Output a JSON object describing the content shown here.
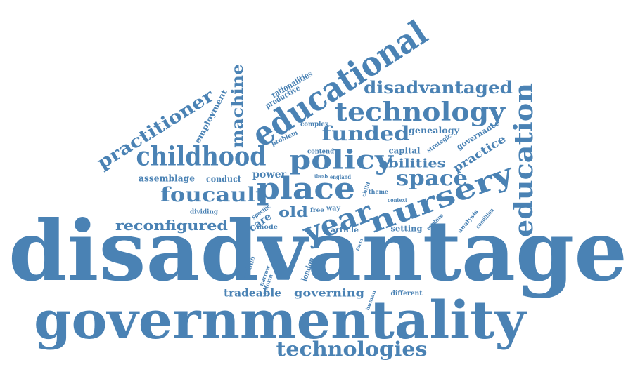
{
  "colors": {
    "word": "#4a82b4",
    "background": "#ffffff"
  },
  "words": [
    "disadvantage",
    "governmentality",
    "educational",
    "nursery",
    "place",
    "year",
    "childhood",
    "policy",
    "technology",
    "education",
    "foucault",
    "funded",
    "technologies",
    "disadvantaged",
    "space",
    "practitioner",
    "machine",
    "reconfigured",
    "practice",
    "abilities",
    "old",
    "assemblage",
    "conduct",
    "power",
    "care",
    "tradeable",
    "governing",
    "genealogy",
    "governance",
    "rationalities",
    "productive",
    "employment",
    "capital",
    "strategic",
    "complex",
    "problem",
    "contend",
    "thesis",
    "england",
    "way",
    "free",
    "specific",
    "mode",
    "dividing",
    "techno",
    "narrow",
    "reform",
    "london",
    "article",
    "setting",
    "explore",
    "analysis",
    "condition",
    "context",
    "theme",
    "child",
    "form",
    "human",
    "different"
  ]
}
